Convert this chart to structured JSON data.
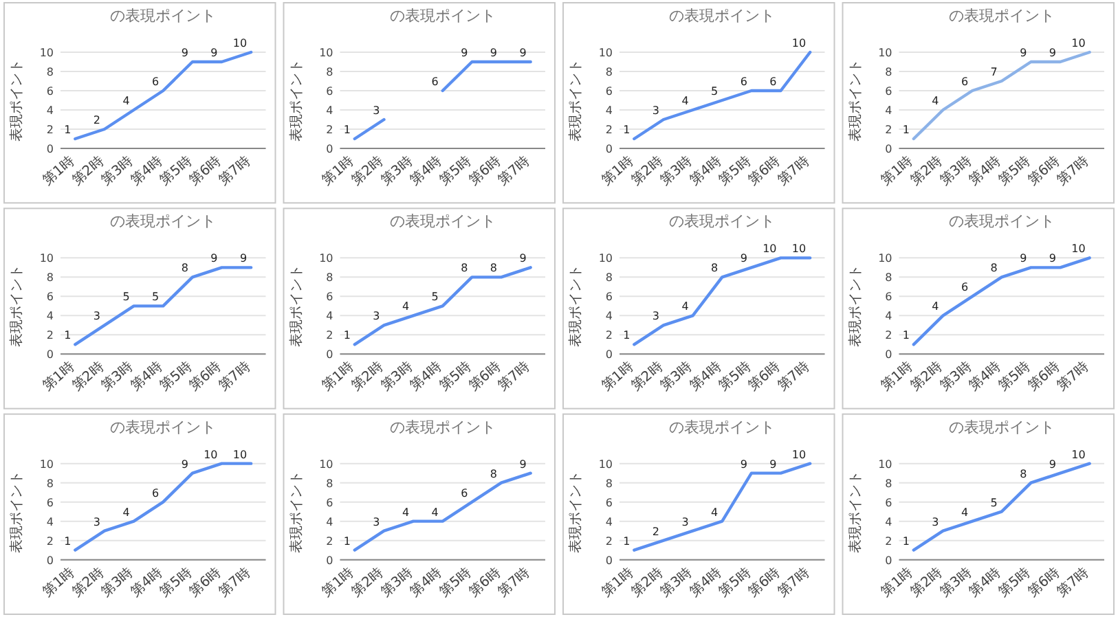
{
  "chart_data": [
    {
      "type": "line",
      "title": "の表現ポイント",
      "ylabel": "表現ポイント",
      "categories": [
        "第1時",
        "第2時",
        "第3時",
        "第4時",
        "第5時",
        "第6時",
        "第7時"
      ],
      "values": [
        1,
        2,
        4,
        6,
        9,
        9,
        10
      ],
      "color": "#5b8ff0",
      "ylim": [
        0,
        10
      ],
      "yticks": [
        0,
        2,
        4,
        6,
        8,
        10
      ],
      "grid": "y",
      "data_labels": true
    },
    {
      "type": "line",
      "title": "の表現ポイント",
      "ylabel": "表現ポイント",
      "categories": [
        "第1時",
        "第2時",
        "第3時",
        "第4時",
        "第5時",
        "第6時",
        "第7時"
      ],
      "values": [
        1,
        3,
        null,
        6,
        9,
        9,
        9
      ],
      "color": "#5b8ff0",
      "ylim": [
        0,
        10
      ],
      "yticks": [
        0,
        2,
        4,
        6,
        8,
        10
      ],
      "grid": "y",
      "data_labels": true
    },
    {
      "type": "line",
      "title": "の表現ポイント",
      "ylabel": "表現ポイント",
      "categories": [
        "第1時",
        "第2時",
        "第3時",
        "第4時",
        "第5時",
        "第6時",
        "第7時"
      ],
      "values": [
        1,
        3,
        4,
        5,
        6,
        6,
        10
      ],
      "color": "#5b8ff0",
      "ylim": [
        0,
        10
      ],
      "yticks": [
        0,
        2,
        4,
        6,
        8,
        10
      ],
      "grid": "y",
      "data_labels": true
    },
    {
      "type": "line",
      "title": "の表現ポイント",
      "ylabel": "表現ポイント",
      "categories": [
        "第1時",
        "第2時",
        "第3時",
        "第4時",
        "第5時",
        "第6時",
        "第7時"
      ],
      "values": [
        1,
        4,
        6,
        7,
        9,
        9,
        10
      ],
      "color": "#8cb2e8",
      "ylim": [
        0,
        10
      ],
      "yticks": [
        0,
        2,
        4,
        6,
        8,
        10
      ],
      "grid": "y",
      "data_labels": true
    },
    {
      "type": "line",
      "title": "の表現ポイント",
      "ylabel": "表現ポイント",
      "categories": [
        "第1時",
        "第2時",
        "第3時",
        "第4時",
        "第5時",
        "第6時",
        "第7時"
      ],
      "values": [
        1,
        3,
        5,
        5,
        8,
        9,
        9
      ],
      "color": "#5b8ff0",
      "ylim": [
        0,
        10
      ],
      "yticks": [
        0,
        2,
        4,
        6,
        8,
        10
      ],
      "grid": "y",
      "data_labels": true
    },
    {
      "type": "line",
      "title": "の表現ポイント",
      "ylabel": "表現ポイント",
      "categories": [
        "第1時",
        "第2時",
        "第3時",
        "第4時",
        "第5時",
        "第6時",
        "第7時"
      ],
      "values": [
        1,
        3,
        4,
        5,
        8,
        8,
        9
      ],
      "color": "#5b8ff0",
      "ylim": [
        0,
        10
      ],
      "yticks": [
        0,
        2,
        4,
        6,
        8,
        10
      ],
      "grid": "y",
      "data_labels": true
    },
    {
      "type": "line",
      "title": "の表現ポイント",
      "ylabel": "表現ポイント",
      "categories": [
        "第1時",
        "第2時",
        "第3時",
        "第4時",
        "第5時",
        "第6時",
        "第7時"
      ],
      "values": [
        1,
        3,
        4,
        8,
        9,
        10,
        10
      ],
      "color": "#5b8ff0",
      "ylim": [
        0,
        10
      ],
      "yticks": [
        0,
        2,
        4,
        6,
        8,
        10
      ],
      "grid": "y",
      "data_labels": true
    },
    {
      "type": "line",
      "title": "の表現ポイント",
      "ylabel": "表現ポイント",
      "categories": [
        "第1時",
        "第2時",
        "第3時",
        "第4時",
        "第5時",
        "第6時",
        "第7時"
      ],
      "values": [
        1,
        4,
        6,
        8,
        9,
        9,
        10
      ],
      "color": "#5b8ff0",
      "ylim": [
        0,
        10
      ],
      "yticks": [
        0,
        2,
        4,
        6,
        8,
        10
      ],
      "grid": "y",
      "data_labels": true
    },
    {
      "type": "line",
      "title": "の表現ポイント",
      "ylabel": "表現ポイント",
      "categories": [
        "第1時",
        "第2時",
        "第3時",
        "第4時",
        "第5時",
        "第6時",
        "第7時"
      ],
      "values": [
        1,
        3,
        4,
        6,
        9,
        10,
        10
      ],
      "color": "#5b8ff0",
      "ylim": [
        0,
        10
      ],
      "yticks": [
        0,
        2,
        4,
        6,
        8,
        10
      ],
      "grid": "y",
      "data_labels": true
    },
    {
      "type": "line",
      "title": "の表現ポイント",
      "ylabel": "表現ポイント",
      "categories": [
        "第1時",
        "第2時",
        "第3時",
        "第4時",
        "第5時",
        "第6時",
        "第7時"
      ],
      "values": [
        1,
        3,
        4,
        4,
        6,
        8,
        9
      ],
      "color": "#5b8ff0",
      "ylim": [
        0,
        10
      ],
      "yticks": [
        0,
        2,
        4,
        6,
        8,
        10
      ],
      "grid": "y",
      "data_labels": true
    },
    {
      "type": "line",
      "title": "の表現ポイント",
      "ylabel": "表現ポイント",
      "categories": [
        "第1時",
        "第2時",
        "第3時",
        "第4時",
        "第5時",
        "第6時",
        "第7時"
      ],
      "values": [
        1,
        2,
        3,
        4,
        9,
        9,
        10
      ],
      "color": "#5b8ff0",
      "ylim": [
        0,
        10
      ],
      "yticks": [
        0,
        2,
        4,
        6,
        8,
        10
      ],
      "grid": "y",
      "data_labels": true
    },
    {
      "type": "line",
      "title": "の表現ポイント",
      "ylabel": "表現ポイント",
      "categories": [
        "第1時",
        "第2時",
        "第3時",
        "第4時",
        "第5時",
        "第6時",
        "第7時"
      ],
      "values": [
        1,
        3,
        4,
        5,
        8,
        9,
        10
      ],
      "color": "#5b8ff0",
      "ylim": [
        0,
        10
      ],
      "yticks": [
        0,
        2,
        4,
        6,
        8,
        10
      ],
      "grid": "y",
      "data_labels": true
    }
  ]
}
